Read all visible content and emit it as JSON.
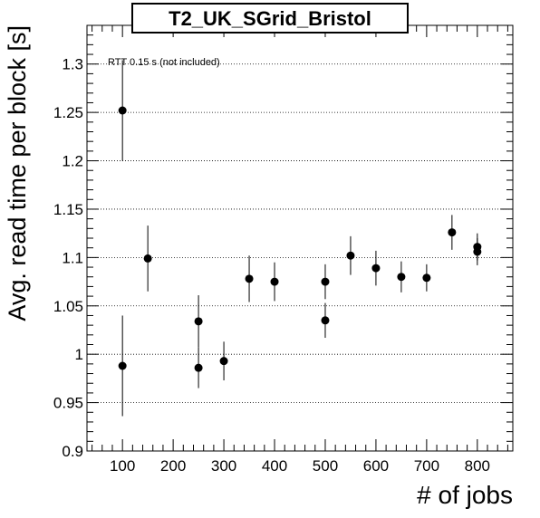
{
  "chart_data": {
    "type": "scatter",
    "title": "T2_UK_SGrid_Bristol",
    "xlabel": "# of jobs",
    "ylabel": "Avg. read time per block [s]",
    "annotation": "RTT 0.15 s (not included)",
    "xlim": [
      30,
      870
    ],
    "ylim": [
      0.9,
      1.34
    ],
    "x_ticks": [
      100,
      200,
      300,
      400,
      500,
      600,
      700,
      800
    ],
    "y_ticks": [
      0.9,
      0.95,
      1.0,
      1.05,
      1.1,
      1.15,
      1.2,
      1.25,
      1.3
    ],
    "x_tick_labels": [
      "100",
      "200",
      "300",
      "400",
      "500",
      "600",
      "700",
      "800"
    ],
    "y_tick_labels": [
      "0.9",
      "0.95",
      "1",
      "1.05",
      "1.1",
      "1.15",
      "1.2",
      "1.25",
      "1.3"
    ],
    "grid": "horizontal dotted",
    "series": [
      {
        "points": [
          {
            "x": 100,
            "y": 1.252,
            "err": 0.052
          },
          {
            "x": 100,
            "y": 0.988,
            "err": 0.052
          },
          {
            "x": 150,
            "y": 1.099,
            "err": 0.034
          },
          {
            "x": 250,
            "y": 1.034,
            "err": 0.027
          },
          {
            "x": 250,
            "y": 0.986,
            "err": 0.021
          },
          {
            "x": 300,
            "y": 0.993,
            "err": 0.02
          },
          {
            "x": 350,
            "y": 1.078,
            "err": 0.024
          },
          {
            "x": 400,
            "y": 1.075,
            "err": 0.02
          },
          {
            "x": 500,
            "y": 1.075,
            "err": 0.018
          },
          {
            "x": 500,
            "y": 1.035,
            "err": 0.018
          },
          {
            "x": 550,
            "y": 1.102,
            "err": 0.02
          },
          {
            "x": 600,
            "y": 1.089,
            "err": 0.018
          },
          {
            "x": 650,
            "y": 1.08,
            "err": 0.016
          },
          {
            "x": 700,
            "y": 1.079,
            "err": 0.014
          },
          {
            "x": 750,
            "y": 1.126,
            "err": 0.018
          },
          {
            "x": 800,
            "y": 1.111,
            "err": 0.014
          },
          {
            "x": 800,
            "y": 1.106,
            "err": 0.014
          }
        ],
        "color": "#000000"
      }
    ]
  }
}
